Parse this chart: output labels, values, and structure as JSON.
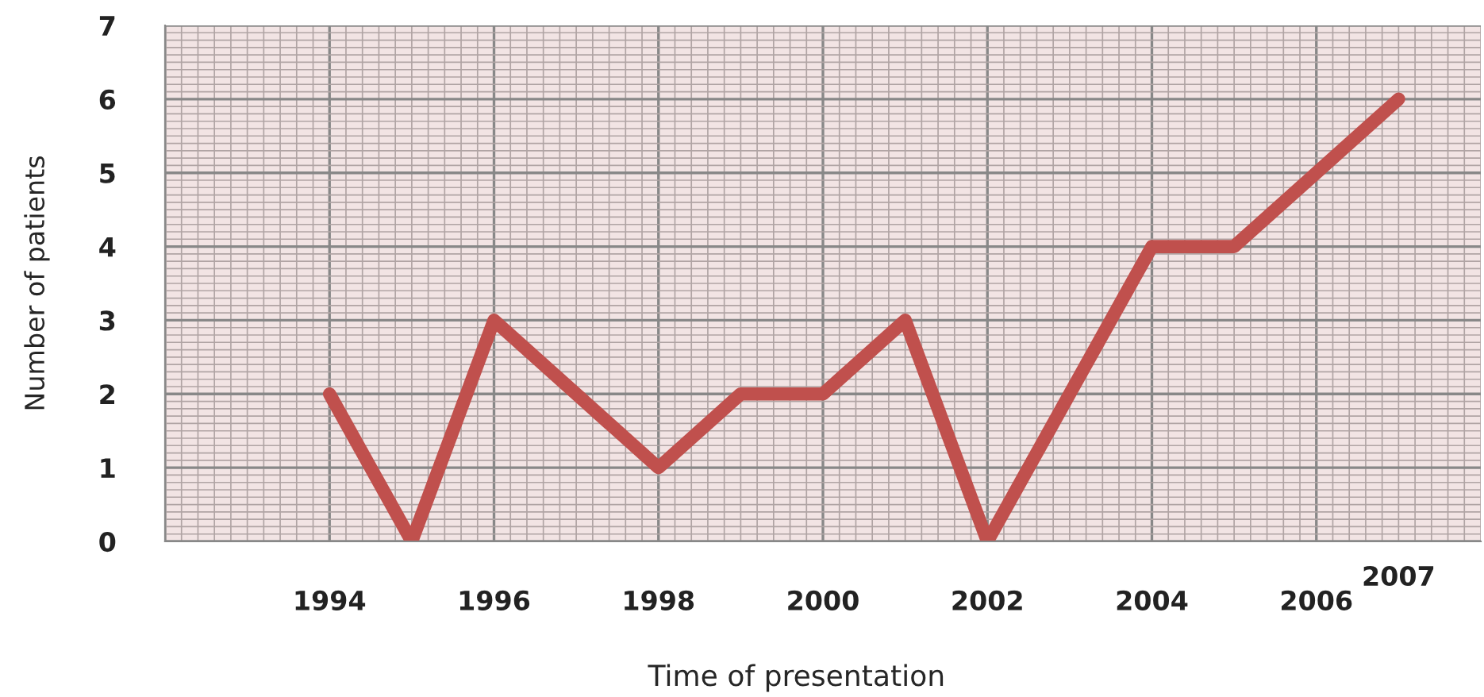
{
  "chart_data": {
    "type": "line",
    "xlabel": "Time of presentation",
    "ylabel": "Number of patients",
    "x": [
      1994,
      1995,
      1996,
      1997,
      1998,
      1999,
      2000,
      2001,
      2002,
      2003,
      2004,
      2005,
      2006,
      2007
    ],
    "series": [
      {
        "color": "#c0504d",
        "values": [
          2,
          0,
          3,
          2,
          1,
          2,
          2,
          3,
          0,
          2,
          4,
          4,
          5,
          6
        ]
      }
    ],
    "xlim": [
      1992,
      2008
    ],
    "xticks": [
      {
        "value": 1992,
        "label": null
      },
      1994,
      1996,
      1998,
      2000,
      2002,
      2004,
      2006
    ],
    "ylim": [
      0,
      7
    ],
    "yticks": [
      0,
      1,
      2,
      3,
      4,
      5,
      6,
      7
    ],
    "annotations": [
      "2007"
    ],
    "grid": true,
    "marker": "none",
    "line_style": "solid"
  }
}
